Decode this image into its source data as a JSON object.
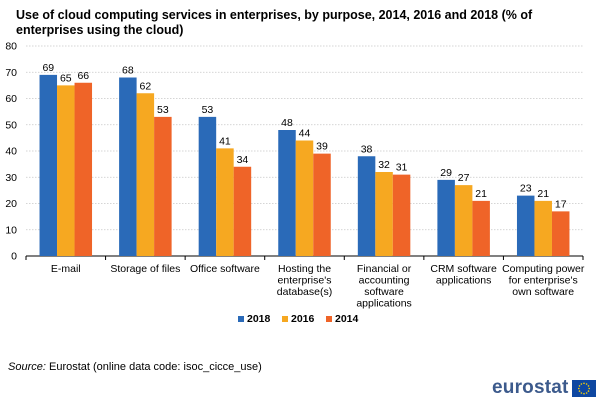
{
  "title": "Use of cloud computing services in enterprises, by purpose, 2014, 2016 and 2018 (% of enterprises using the cloud)",
  "source": {
    "label": "Source:",
    "text": "Eurostat (online data code: isoc_cicce_use)"
  },
  "brand": {
    "name": "eurostat",
    "flag_icon": "eu-flag-icon"
  },
  "chart_data": {
    "type": "bar",
    "categories": [
      [
        "E-mail"
      ],
      [
        "Storage of files"
      ],
      [
        "Office software"
      ],
      [
        "Hosting the",
        "enterprise's",
        "database(s)"
      ],
      [
        "Financial or",
        "accounting",
        "software",
        "applications"
      ],
      [
        "CRM software",
        "applications"
      ],
      [
        "Computing power",
        "for enterprise's",
        "own software"
      ]
    ],
    "series": [
      {
        "name": "2018",
        "color": "#2a6ab8",
        "values": [
          69,
          68,
          53,
          48,
          38,
          29,
          23
        ]
      },
      {
        "name": "2016",
        "color": "#f6a821",
        "values": [
          65,
          62,
          41,
          44,
          32,
          27,
          21
        ]
      },
      {
        "name": "2014",
        "color": "#ef6428",
        "values": [
          66,
          53,
          34,
          39,
          31,
          21,
          17
        ]
      }
    ],
    "ylim": [
      0,
      80
    ],
    "yticks": [
      0,
      10,
      20,
      30,
      40,
      50,
      60,
      70,
      80
    ],
    "grid": true,
    "data_labels": true,
    "legend_position": "bottom-center"
  }
}
